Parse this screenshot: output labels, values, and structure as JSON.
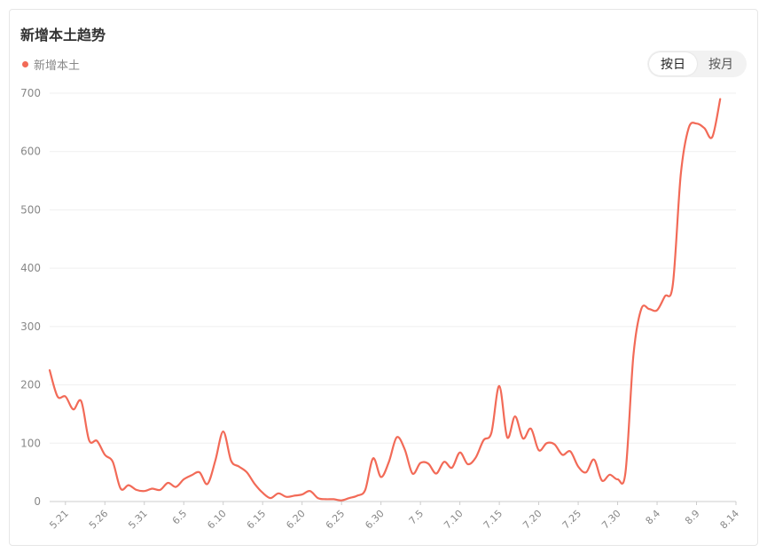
{
  "card": {
    "title": "新增本土趋势",
    "toggle": {
      "day_label": "按日",
      "month_label": "按月",
      "active": "day"
    }
  },
  "colors": {
    "series": "#f26a57",
    "grid": "#efefef",
    "axis": "#cccccc"
  },
  "chart_data": {
    "type": "line",
    "title": "新增本土趋势",
    "legend": "top-left",
    "grid": true,
    "ylim": [
      0,
      700
    ],
    "yticks": [
      0,
      100,
      200,
      300,
      400,
      500,
      600,
      700
    ],
    "xlim": [
      0,
      87
    ],
    "xticks": [
      {
        "i": 2,
        "label": "5.21"
      },
      {
        "i": 7,
        "label": "5.26"
      },
      {
        "i": 12,
        "label": "5.31"
      },
      {
        "i": 17,
        "label": "6.5"
      },
      {
        "i": 22,
        "label": "6.10"
      },
      {
        "i": 27,
        "label": "6.15"
      },
      {
        "i": 32,
        "label": "6.20"
      },
      {
        "i": 37,
        "label": "6.25"
      },
      {
        "i": 42,
        "label": "6.30"
      },
      {
        "i": 47,
        "label": "7.5"
      },
      {
        "i": 52,
        "label": "7.10"
      },
      {
        "i": 57,
        "label": "7.15"
      },
      {
        "i": 62,
        "label": "7.20"
      },
      {
        "i": 67,
        "label": "7.25"
      },
      {
        "i": 72,
        "label": "7.30"
      },
      {
        "i": 77,
        "label": "8.4"
      },
      {
        "i": 82,
        "label": "8.9"
      },
      {
        "i": 87,
        "label": "8.14"
      }
    ],
    "series": [
      {
        "name": "新增本土",
        "start_date": "5.19",
        "values": [
          225,
          180,
          180,
          158,
          172,
          105,
          104,
          80,
          68,
          22,
          28,
          20,
          18,
          22,
          20,
          32,
          25,
          38,
          45,
          50,
          30,
          70,
          120,
          70,
          60,
          50,
          30,
          15,
          6,
          14,
          8,
          10,
          12,
          18,
          6,
          4,
          4,
          2,
          6,
          10,
          20,
          74,
          42,
          68,
          110,
          90,
          48,
          66,
          65,
          48,
          68,
          58,
          84,
          64,
          75,
          105,
          118,
          198,
          110,
          146,
          108,
          125,
          88,
          100,
          98,
          80,
          86,
          60,
          50,
          72,
          36,
          46,
          38,
          50,
          250,
          330,
          330,
          328,
          352,
          372,
          560,
          640,
          648,
          640,
          625,
          690
        ]
      }
    ]
  }
}
